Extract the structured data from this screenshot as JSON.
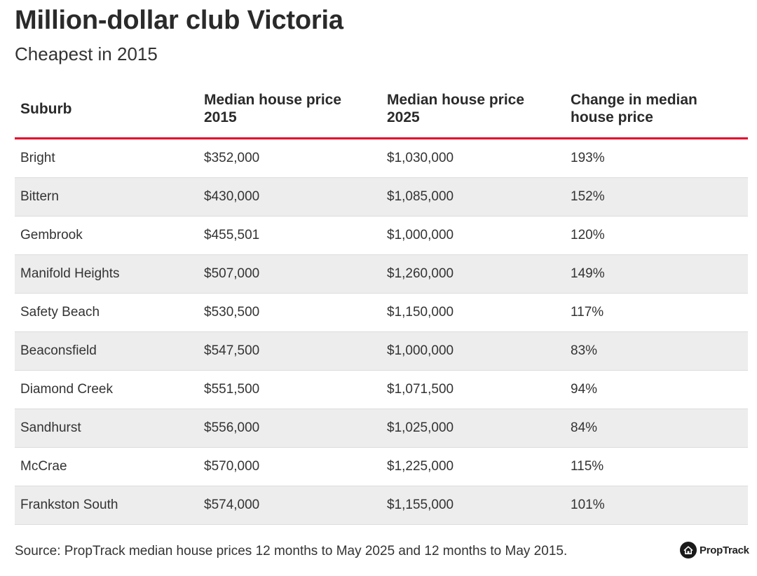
{
  "title": "Million-dollar club Victoria",
  "subtitle": "Cheapest in 2015",
  "source": "Source: PropTrack median house prices 12 months to May 2025 and 12 months to May 2015.",
  "brand": {
    "name": "PropTrack",
    "icon": "proptrack-house-icon"
  },
  "colors": {
    "accent": "#e4002b",
    "alt_row": "#ededed",
    "text": "#333333"
  },
  "chart_data": {
    "type": "table",
    "columns": [
      "Suburb",
      "Median house price 2015",
      "Median house price 2025",
      "Change in median house price"
    ],
    "rows": [
      [
        "Bright",
        "$352,000",
        "$1,030,000",
        "193%"
      ],
      [
        "Bittern",
        "$430,000",
        "$1,085,000",
        "152%"
      ],
      [
        "Gembrook",
        "$455,501",
        "$1,000,000",
        "120%"
      ],
      [
        "Manifold Heights",
        "$507,000",
        "$1,260,000",
        "149%"
      ],
      [
        "Safety Beach",
        "$530,500",
        "$1,150,000",
        "117%"
      ],
      [
        "Beaconsfield",
        "$547,500",
        "$1,000,000",
        "83%"
      ],
      [
        "Diamond Creek",
        "$551,500",
        "$1,071,500",
        "94%"
      ],
      [
        "Sandhurst",
        "$556,000",
        "$1,025,000",
        "84%"
      ],
      [
        "McCrae",
        "$570,000",
        "$1,225,000",
        "115%"
      ],
      [
        "Frankston South",
        "$574,000",
        "$1,155,000",
        "101%"
      ]
    ]
  }
}
